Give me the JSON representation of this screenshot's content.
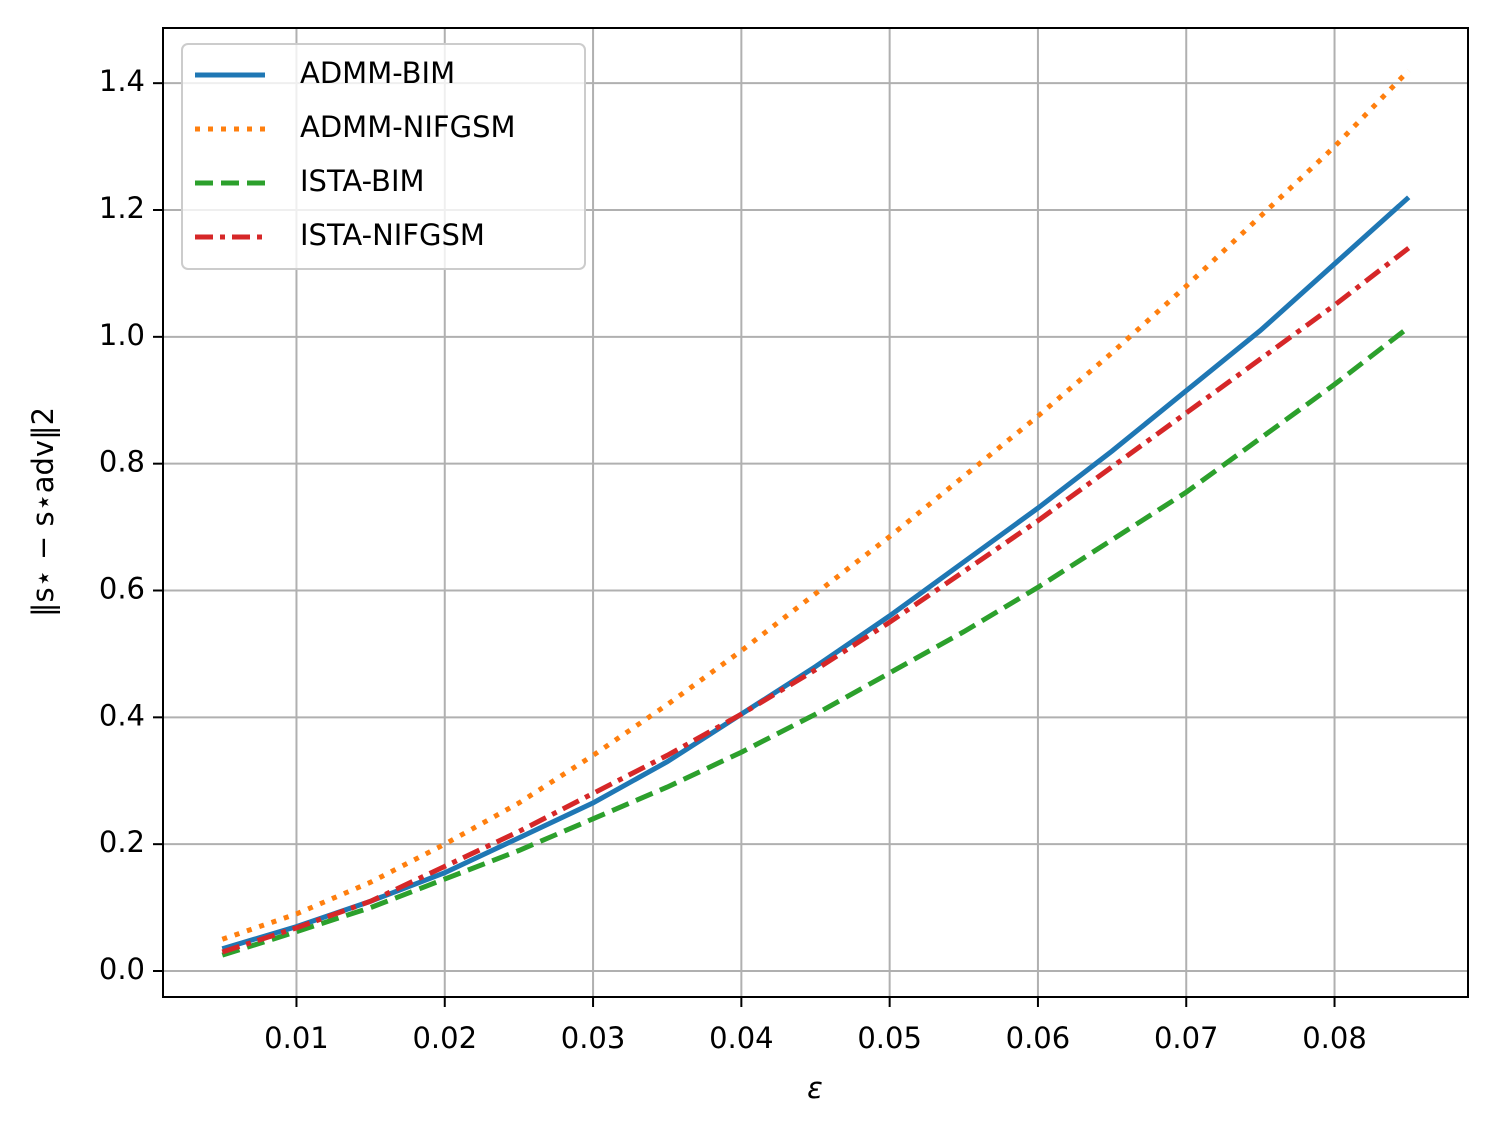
{
  "chart_data": {
    "type": "line",
    "xlabel": "ε",
    "ylabel": "‖s⋆ − s⋆adv‖2",
    "x": [
      0.005,
      0.01,
      0.015,
      0.02,
      0.025,
      0.03,
      0.035,
      0.04,
      0.045,
      0.05,
      0.055,
      0.06,
      0.065,
      0.07,
      0.075,
      0.08,
      0.085
    ],
    "series": [
      {
        "name": "ADMM-BIM",
        "color": "#1f77b4",
        "linestyle": "solid",
        "values": [
          0.035,
          0.07,
          0.11,
          0.155,
          0.21,
          0.265,
          0.33,
          0.405,
          0.48,
          0.56,
          0.645,
          0.73,
          0.82,
          0.915,
          1.01,
          1.115,
          1.22
        ]
      },
      {
        "name": "ADMM-NIFGSM",
        "color": "#ff7f0e",
        "linestyle": "dotted",
        "values": [
          0.05,
          0.09,
          0.14,
          0.2,
          0.265,
          0.34,
          0.42,
          0.505,
          0.595,
          0.685,
          0.78,
          0.875,
          0.975,
          1.08,
          1.19,
          1.3,
          1.42
        ]
      },
      {
        "name": "ISTA-BIM",
        "color": "#2ca02c",
        "linestyle": "dashed",
        "values": [
          0.025,
          0.062,
          0.1,
          0.145,
          0.19,
          0.24,
          0.29,
          0.345,
          0.405,
          0.47,
          0.535,
          0.605,
          0.68,
          0.755,
          0.84,
          0.925,
          1.015
        ]
      },
      {
        "name": "ISTA-NIFGSM",
        "color": "#d62728",
        "linestyle": "dashdot",
        "values": [
          0.03,
          0.068,
          0.11,
          0.165,
          0.22,
          0.28,
          0.34,
          0.405,
          0.475,
          0.55,
          0.63,
          0.71,
          0.795,
          0.88,
          0.965,
          1.05,
          1.14
        ]
      }
    ],
    "xlim": [
      0.001,
      0.089
    ],
    "ylim": [
      -0.041,
      1.487
    ],
    "xticks": [
      0.01,
      0.02,
      0.03,
      0.04,
      0.05,
      0.06,
      0.07,
      0.08
    ],
    "yticks": [
      {
        "value": 0,
        "label": "0.0"
      },
      0.2,
      0.4,
      0.6,
      0.8,
      {
        "value": 1,
        "label": "1.0"
      },
      1.2,
      1.4
    ],
    "grid": true,
    "legend": "upper-left"
  }
}
